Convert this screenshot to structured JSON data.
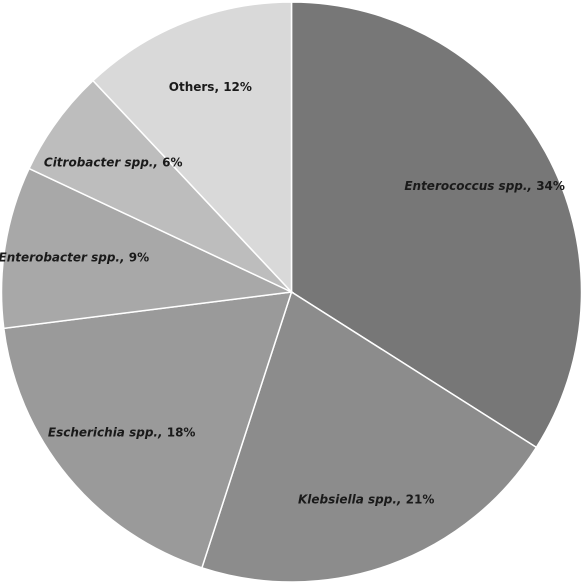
{
  "chart_data": {
    "type": "pie",
    "categories": [
      "Enterococcus spp.,",
      "Klebsiella spp.,",
      "Escherichia spp.,",
      "Enterobacter spp.,",
      "Citrobacter spp.,",
      "Others,"
    ],
    "values": [
      34,
      21,
      18,
      9,
      6,
      12
    ],
    "value_labels": [
      "34%",
      "21%",
      "18%",
      "9%",
      "6%",
      "12%"
    ],
    "colors": [
      "#777777",
      "#8c8c8c",
      "#9a9a9a",
      "#a8a8a8",
      "#bdbdbd",
      "#d9d9d9"
    ],
    "italic_names": [
      true,
      true,
      true,
      true,
      true,
      false
    ]
  }
}
